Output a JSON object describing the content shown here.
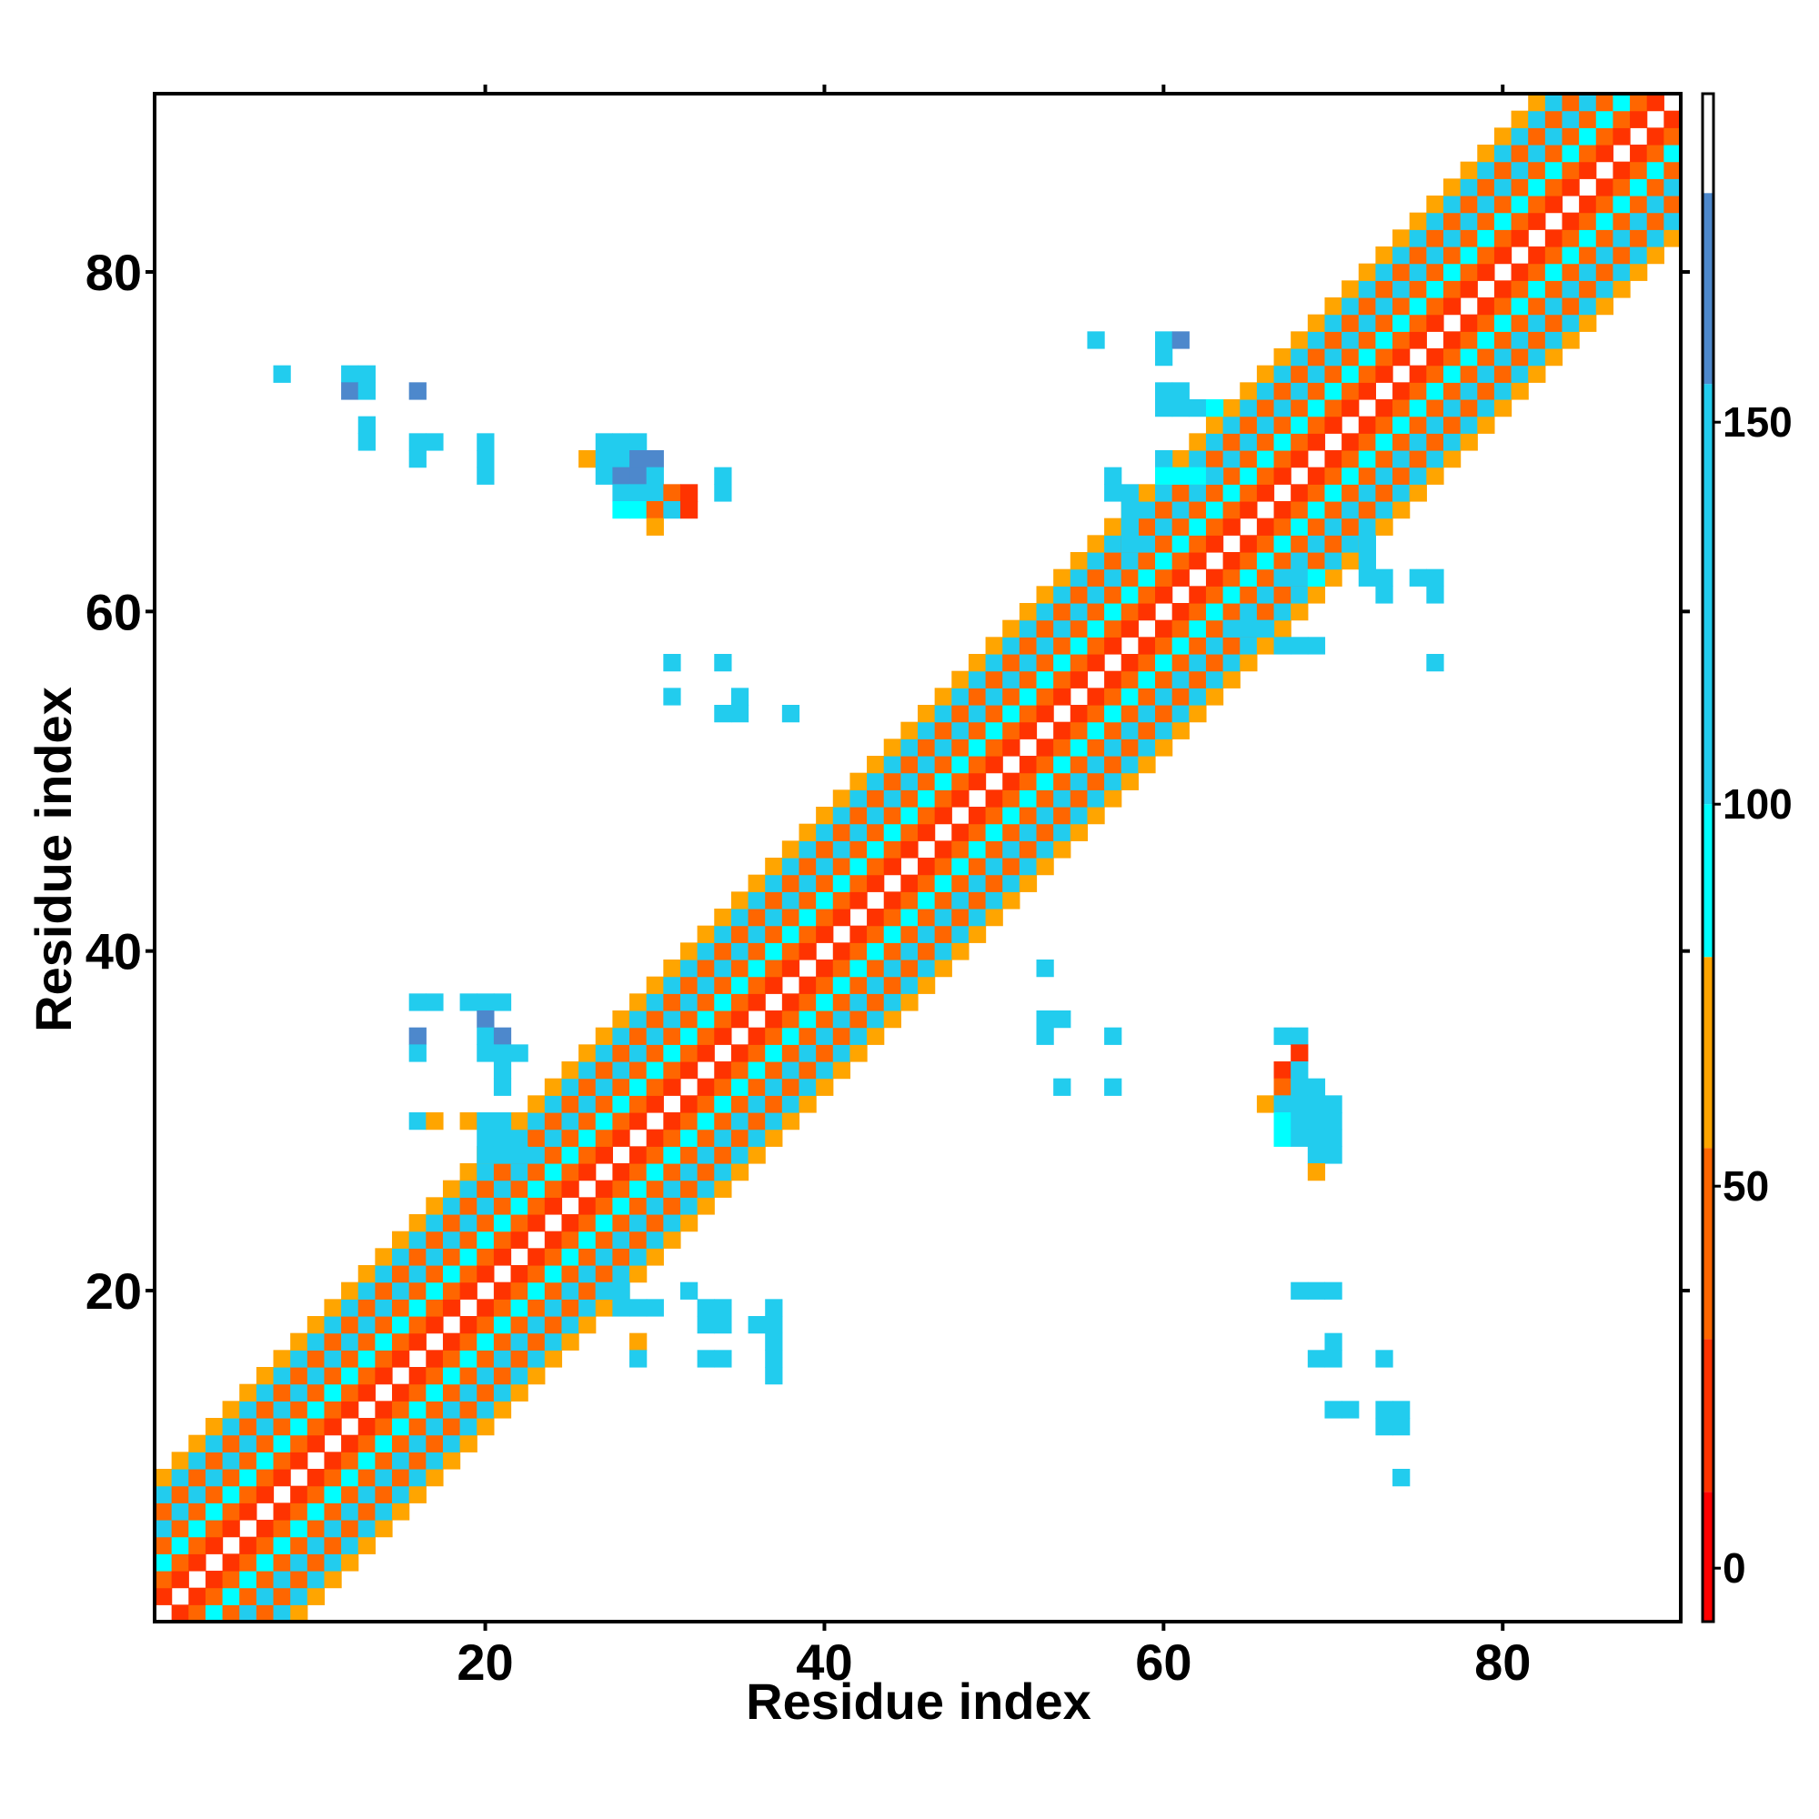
{
  "chart_data": {
    "type": "heatmap",
    "title": "",
    "xlabel": "Residue index",
    "ylabel": "Residue index",
    "xlim": [
      0.5,
      90.5
    ],
    "ylim": [
      0.5,
      90.5
    ],
    "x_ticks": [
      20,
      40,
      60,
      80
    ],
    "y_ticks": [
      20,
      40,
      60,
      80
    ],
    "x_tick_labels": [
      "20",
      "40",
      "60",
      "80"
    ],
    "y_tick_labels": [
      "20",
      "40",
      "60",
      "80"
    ],
    "grid": false,
    "legend": "colorbar-right",
    "colorbar": {
      "min": -7,
      "max": 193,
      "ticks": [
        0,
        50,
        100,
        150
      ],
      "tick_labels": [
        "0",
        "50",
        "100",
        "150"
      ],
      "segments": [
        {
          "from": -7,
          "to": 10,
          "color": "#ff0000"
        },
        {
          "from": 10,
          "to": 30,
          "color": "#ff3300"
        },
        {
          "from": 30,
          "to": 55,
          "color": "#ff6600"
        },
        {
          "from": 55,
          "to": 80,
          "color": "#ffa500"
        },
        {
          "from": 80,
          "to": 100,
          "color": "#00ffff"
        },
        {
          "from": 100,
          "to": 155,
          "color": "#22ccee"
        },
        {
          "from": 155,
          "to": 180,
          "color": "#4d88cc"
        },
        {
          "from": 180,
          "to": 193,
          "color": "#ffffff"
        }
      ]
    },
    "diagonal_band": {
      "description": "near-diagonal cells (|i-j| from 1 to 8) carry values on a repeating pattern",
      "offset_min": 1,
      "offset_max": 8,
      "offset_values": {
        "1": 15,
        "2": 45,
        "3": 90,
        "4": 45,
        "5": 120,
        "6": 40,
        "7": 110,
        "8": 60
      }
    },
    "off_diagonal_contacts": [
      [
        8,
        74,
        110
      ],
      [
        12,
        74,
        110
      ],
      [
        13,
        74,
        110
      ],
      [
        12,
        73,
        160
      ],
      [
        13,
        73,
        110
      ],
      [
        16,
        73,
        160
      ],
      [
        13,
        71,
        140
      ],
      [
        13,
        70,
        110
      ],
      [
        16,
        70,
        110
      ],
      [
        17,
        70,
        110
      ],
      [
        16,
        69,
        110
      ],
      [
        20,
        70,
        110
      ],
      [
        20,
        69,
        110
      ],
      [
        20,
        68,
        110
      ],
      [
        27,
        70,
        110
      ],
      [
        28,
        70,
        110
      ],
      [
        29,
        70,
        110
      ],
      [
        26,
        69,
        60
      ],
      [
        27,
        69,
        120
      ],
      [
        28,
        69,
        140
      ],
      [
        29,
        69,
        160
      ],
      [
        30,
        69,
        160
      ],
      [
        27,
        68,
        120
      ],
      [
        28,
        68,
        160
      ],
      [
        29,
        68,
        160
      ],
      [
        30,
        68,
        120
      ],
      [
        34,
        68,
        110
      ],
      [
        28,
        67,
        120
      ],
      [
        29,
        67,
        120
      ],
      [
        30,
        67,
        120
      ],
      [
        31,
        67,
        40
      ],
      [
        32,
        67,
        20
      ],
      [
        34,
        67,
        110
      ],
      [
        28,
        66,
        90
      ],
      [
        29,
        66,
        90
      ],
      [
        30,
        66,
        50
      ],
      [
        31,
        66,
        110
      ],
      [
        32,
        66,
        20
      ],
      [
        30,
        65,
        70
      ],
      [
        16,
        37,
        110
      ],
      [
        17,
        37,
        110
      ],
      [
        19,
        37,
        110
      ],
      [
        20,
        37,
        110
      ],
      [
        21,
        37,
        140
      ],
      [
        20,
        36,
        160
      ],
      [
        16,
        35,
        160
      ],
      [
        20,
        35,
        110
      ],
      [
        21,
        35,
        160
      ],
      [
        16,
        34,
        140
      ],
      [
        20,
        34,
        110
      ],
      [
        21,
        34,
        110
      ],
      [
        22,
        34,
        110
      ],
      [
        21,
        33,
        110
      ],
      [
        21,
        32,
        110
      ],
      [
        16,
        30,
        110
      ],
      [
        17,
        30,
        70
      ],
      [
        19,
        30,
        70
      ],
      [
        20,
        30,
        110
      ],
      [
        21,
        30,
        110
      ],
      [
        20,
        29,
        110
      ],
      [
        21,
        29,
        110
      ],
      [
        20,
        28,
        110
      ],
      [
        21,
        28,
        140
      ],
      [
        22,
        28,
        110
      ],
      [
        27,
        20,
        140
      ],
      [
        28,
        20,
        110
      ],
      [
        28,
        19,
        110
      ],
      [
        29,
        19,
        110
      ],
      [
        30,
        19,
        110
      ],
      [
        32,
        20,
        110
      ],
      [
        33,
        19,
        110
      ],
      [
        34,
        19,
        140
      ],
      [
        33,
        18,
        110
      ],
      [
        34,
        18,
        110
      ],
      [
        36,
        18,
        140
      ],
      [
        37,
        18,
        110
      ],
      [
        37,
        19,
        110
      ],
      [
        37,
        17,
        110
      ],
      [
        29,
        17,
        70
      ],
      [
        29,
        16,
        110
      ],
      [
        33,
        16,
        110
      ],
      [
        34,
        16,
        140
      ],
      [
        37,
        16,
        110
      ],
      [
        37,
        15,
        110
      ],
      [
        31,
        57,
        110
      ],
      [
        34,
        57,
        110
      ],
      [
        31,
        55,
        110
      ],
      [
        35,
        55,
        140
      ],
      [
        34,
        54,
        140
      ],
      [
        35,
        54,
        110
      ],
      [
        38,
        54,
        110
      ],
      [
        56,
        76,
        110
      ],
      [
        60,
        76,
        110
      ],
      [
        61,
        76,
        160
      ],
      [
        60,
        75,
        110
      ],
      [
        60,
        73,
        110
      ],
      [
        61,
        73,
        110
      ],
      [
        60,
        72,
        110
      ],
      [
        61,
        72,
        110
      ],
      [
        62,
        72,
        110
      ],
      [
        63,
        72,
        90
      ],
      [
        57,
        68,
        110
      ],
      [
        57,
        67,
        110
      ],
      [
        58,
        67,
        140
      ],
      [
        58,
        66,
        140
      ],
      [
        58,
        65,
        140
      ],
      [
        58,
        64,
        140
      ],
      [
        60,
        69,
        110
      ],
      [
        60,
        68,
        90
      ],
      [
        61,
        68,
        90
      ],
      [
        62,
        68,
        90
      ],
      [
        63,
        68,
        110
      ],
      [
        64,
        59,
        140
      ],
      [
        65,
        59,
        140
      ],
      [
        66,
        59,
        110
      ],
      [
        67,
        58,
        110
      ],
      [
        68,
        58,
        110
      ],
      [
        69,
        58,
        110
      ],
      [
        67,
        62,
        110
      ],
      [
        68,
        62,
        110
      ],
      [
        69,
        62,
        90
      ],
      [
        72,
        62,
        110
      ],
      [
        73,
        62,
        110
      ],
      [
        75,
        62,
        110
      ],
      [
        76,
        62,
        140
      ],
      [
        72,
        63,
        110
      ],
      [
        73,
        61,
        110
      ],
      [
        72,
        64,
        110
      ],
      [
        76,
        61,
        110
      ],
      [
        76,
        57,
        110
      ],
      [
        53,
        39,
        110
      ],
      [
        53,
        36,
        140
      ],
      [
        54,
        36,
        110
      ],
      [
        53,
        35,
        140
      ],
      [
        57,
        35,
        110
      ],
      [
        54,
        32,
        110
      ],
      [
        57,
        32,
        110
      ],
      [
        67,
        35,
        110
      ],
      [
        68,
        35,
        110
      ],
      [
        68,
        34,
        20
      ],
      [
        67,
        33,
        20
      ],
      [
        68,
        33,
        110
      ],
      [
        67,
        32,
        40
      ],
      [
        68,
        32,
        110
      ],
      [
        69,
        32,
        110
      ],
      [
        66,
        31,
        70
      ],
      [
        67,
        31,
        110
      ],
      [
        68,
        31,
        140
      ],
      [
        69,
        31,
        140
      ],
      [
        70,
        31,
        110
      ],
      [
        67,
        30,
        90
      ],
      [
        68,
        30,
        110
      ],
      [
        69,
        30,
        140
      ],
      [
        70,
        30,
        110
      ],
      [
        67,
        29,
        90
      ],
      [
        68,
        29,
        110
      ],
      [
        69,
        29,
        110
      ],
      [
        70,
        29,
        110
      ],
      [
        69,
        28,
        110
      ],
      [
        70,
        28,
        110
      ],
      [
        69,
        27,
        60
      ],
      [
        68,
        20,
        110
      ],
      [
        69,
        20,
        110
      ],
      [
        70,
        20,
        110
      ],
      [
        70,
        17,
        110
      ],
      [
        69,
        16,
        110
      ],
      [
        70,
        16,
        110
      ],
      [
        73,
        16,
        140
      ],
      [
        70,
        13,
        110
      ],
      [
        71,
        13,
        140
      ],
      [
        73,
        13,
        110
      ],
      [
        74,
        13,
        110
      ],
      [
        73,
        12,
        140
      ],
      [
        74,
        12,
        110
      ],
      [
        74,
        9,
        110
      ]
    ]
  }
}
